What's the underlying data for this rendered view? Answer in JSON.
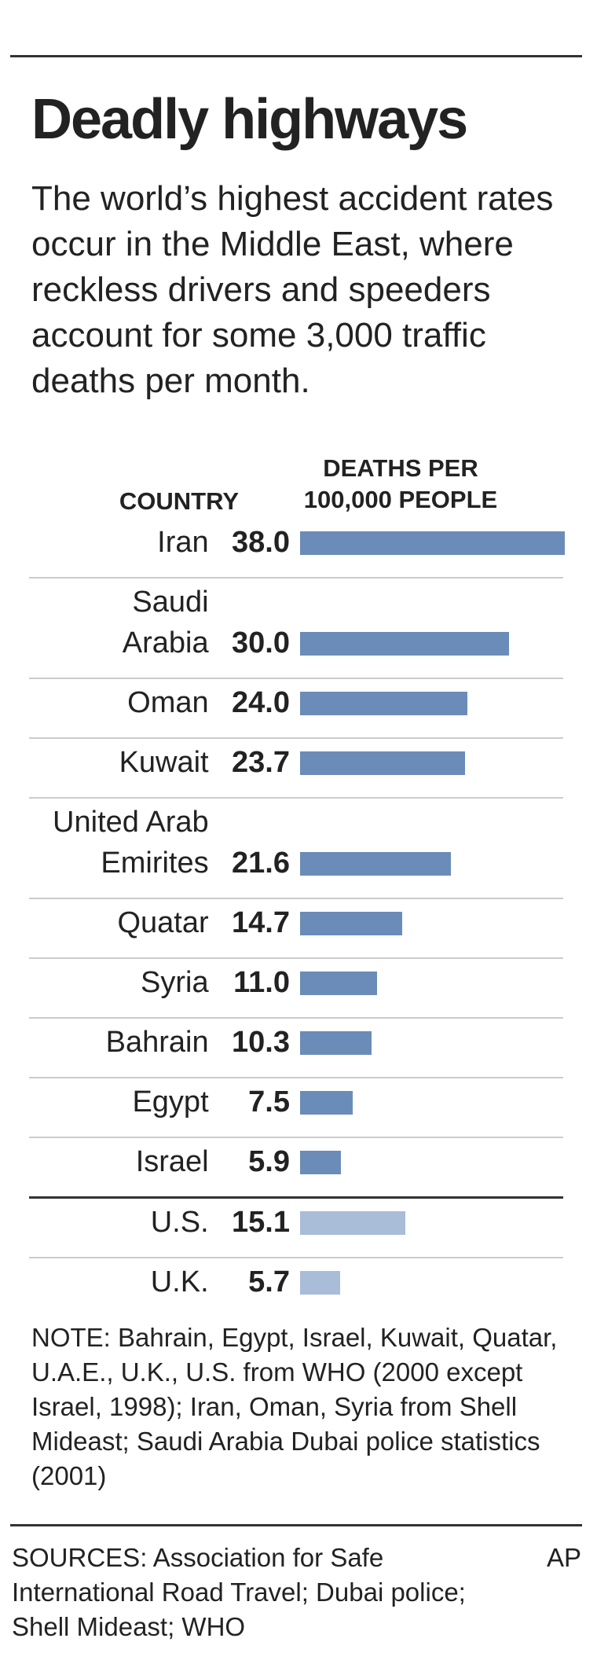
{
  "chart_data": {
    "type": "bar",
    "title": "Deadly highways",
    "subtitle": "The world’s highest accident rates occur in the Middle East, where reckless drivers and speeders account for some 3,000 traffic deaths per month.",
    "category_header": "COUNTRY",
    "value_header": "DEATHS PER\n100,000 PEOPLE",
    "categories": [
      "Iran",
      "Saudi\nArabia",
      "Oman",
      "Kuwait",
      "United Arab\nEmirites",
      "Quatar",
      "Syria",
      "Bahrain",
      "Egypt",
      "Israel",
      "U.S.",
      "U.K."
    ],
    "values": [
      38.0,
      30.0,
      24.0,
      23.7,
      21.6,
      14.7,
      11.0,
      10.3,
      7.5,
      5.9,
      15.1,
      5.7
    ],
    "value_labels": [
      "38.0",
      "30.0",
      "24.0",
      "23.7",
      "21.6",
      "14.7",
      "11.0",
      "10.3",
      "7.5",
      "5.9",
      "15.1",
      "5.7"
    ],
    "colors": [
      "#6b8cb8",
      "#6b8cb8",
      "#6b8cb8",
      "#6b8cb8",
      "#6b8cb8",
      "#6b8cb8",
      "#6b8cb8",
      "#6b8cb8",
      "#6b8cb8",
      "#6b8cb8",
      "#a9bcd8",
      "#a9bcd8"
    ],
    "xlim": [
      0,
      38
    ],
    "note": "NOTE: Bahrain, Egypt, Israel, Kuwait, Quatar, U.A.E., U.K., U.S. from WHO (2000 except Israel, 1998); Iran, Oman, Syria from Shell Mideast; Saudi Arabia Dubai police statistics (2001)",
    "sources": "SOURCES: Association for Safe International Road Travel; Dubai police; Shell Mideast; WHO",
    "credit": "AP"
  }
}
